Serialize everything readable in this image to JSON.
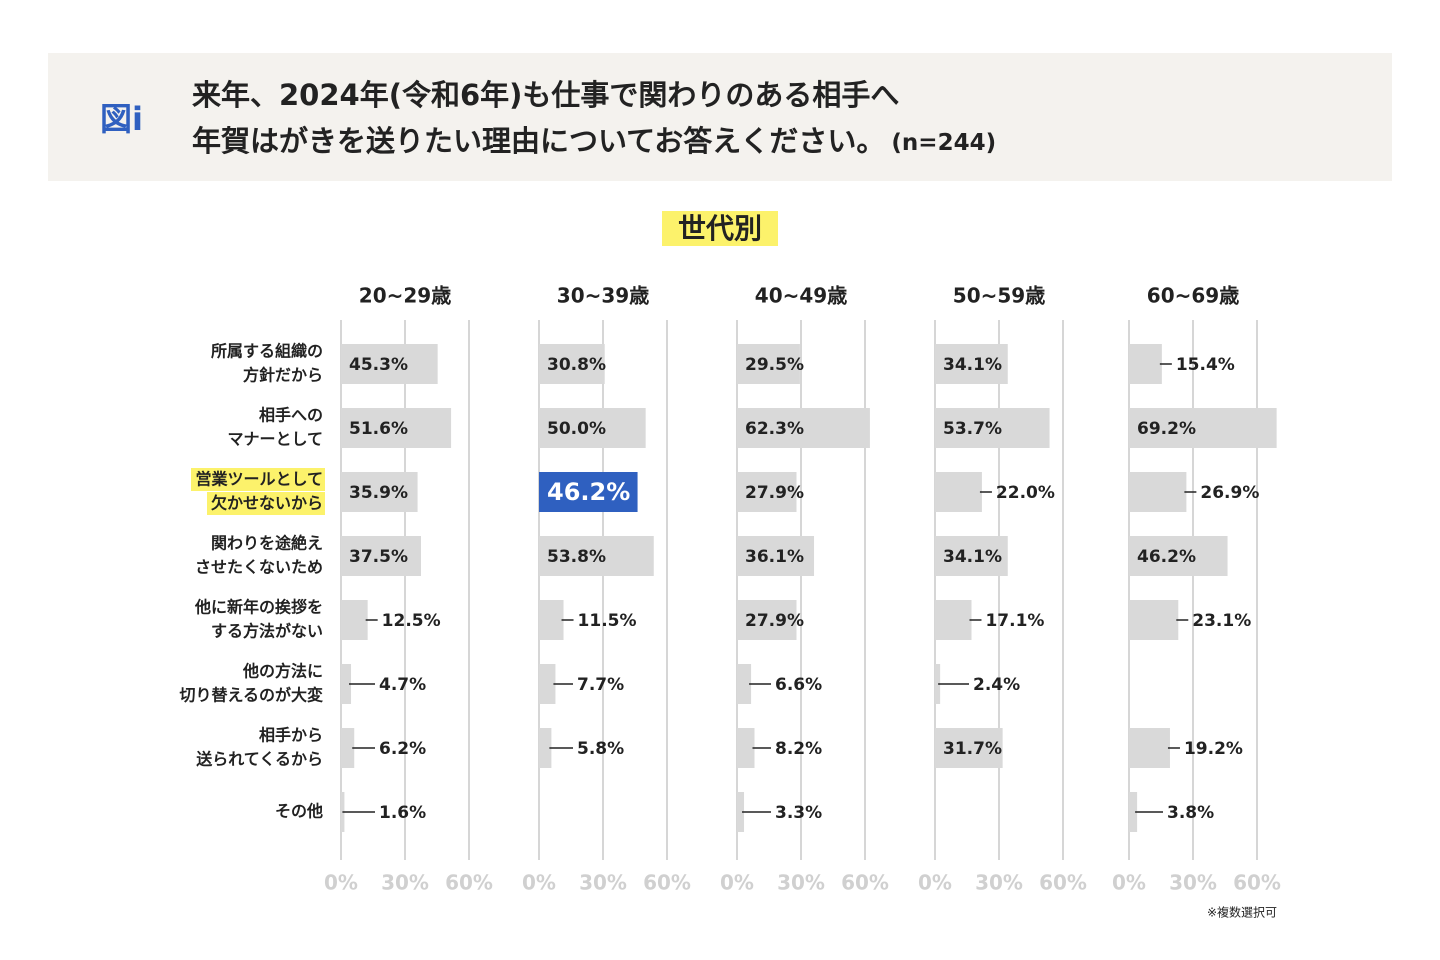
{
  "header": {
    "badge": "図i",
    "title_line1": "来年、2024年(令和6年)も仕事で関わりのある相手へ",
    "title_line2": "年賀はがきを送りたい理由についてお答えください。",
    "n": "(n=244)"
  },
  "subtitle": "世代別",
  "categories": [
    [
      "所属する組織の",
      "方針だから"
    ],
    [
      "相手への",
      "マナーとして"
    ],
    [
      "営業ツールとして",
      "欠かせないから"
    ],
    [
      "関わりを途絶え",
      "させたくないため"
    ],
    [
      "他に新年の挨拶を",
      "する方法がない"
    ],
    [
      "他の方法に",
      "切り替えるのが大変"
    ],
    [
      "相手から",
      "送られてくるから"
    ],
    [
      "その他"
    ]
  ],
  "highlight_category": 2,
  "highlight_category_color": "#fcf26b",
  "note": "※複数選択可",
  "chart_data": [
    {
      "type": "bar",
      "title": "20~29歳",
      "color": "#d9d9d9",
      "values": [
        45.3,
        51.6,
        35.9,
        37.5,
        12.5,
        4.7,
        6.2,
        1.6
      ],
      "value_labels": [
        "45.3%",
        "51.6%",
        "35.9%",
        "37.5%",
        "12.5%",
        "4.7%",
        "6.2%",
        "1.6%"
      ],
      "xlim": [
        0,
        60
      ],
      "xticks": [
        {
          "value": 0,
          "label": "0%"
        },
        {
          "value": 30,
          "label": "30%"
        },
        {
          "value": 60,
          "label": "60%"
        }
      ],
      "grid": true
    },
    {
      "type": "bar",
      "title": "30~39歳",
      "color": "#d9d9d9",
      "highlight_index": 2,
      "highlight_color": "#2f60c0",
      "values": [
        30.8,
        50.0,
        46.2,
        53.8,
        11.5,
        7.7,
        5.8,
        null
      ],
      "value_labels": [
        "30.8%",
        "50.0%",
        "46.2%",
        "53.8%",
        "11.5%",
        "7.7%",
        "5.8%",
        null
      ],
      "xlim": [
        0,
        60
      ],
      "xticks": [
        {
          "value": 0,
          "label": "0%"
        },
        {
          "value": 30,
          "label": "30%"
        },
        {
          "value": 60,
          "label": "60%"
        }
      ],
      "grid": true
    },
    {
      "type": "bar",
      "title": "40~49歳",
      "color": "#d9d9d9",
      "values": [
        29.5,
        62.3,
        27.9,
        36.1,
        27.9,
        6.6,
        8.2,
        3.3
      ],
      "value_labels": [
        "29.5%",
        "62.3%",
        "27.9%",
        "36.1%",
        "27.9%",
        "6.6%",
        "8.2%",
        "3.3%"
      ],
      "xlim": [
        0,
        60
      ],
      "xticks": [
        {
          "value": 0,
          "label": "0%"
        },
        {
          "value": 30,
          "label": "30%"
        },
        {
          "value": 60,
          "label": "60%"
        }
      ],
      "grid": true
    },
    {
      "type": "bar",
      "title": "50~59歳",
      "color": "#d9d9d9",
      "values": [
        34.1,
        53.7,
        22.0,
        34.1,
        17.1,
        2.4,
        31.7,
        null
      ],
      "value_labels": [
        "34.1%",
        "53.7%",
        "22.0%",
        "34.1%",
        "17.1%",
        "2.4%",
        "31.7%",
        null
      ],
      "xlim": [
        0,
        60
      ],
      "xticks": [
        {
          "value": 0,
          "label": "0%"
        },
        {
          "value": 30,
          "label": "30%"
        },
        {
          "value": 60,
          "label": "60%"
        }
      ],
      "grid": true
    },
    {
      "type": "bar",
      "title": "60~69歳",
      "color": "#d9d9d9",
      "values": [
        15.4,
        69.2,
        26.9,
        46.2,
        23.1,
        null,
        19.2,
        3.8
      ],
      "value_labels": [
        "15.4%",
        "69.2%",
        "26.9%",
        "46.2%",
        "23.1%",
        null,
        "19.2%",
        "3.8%"
      ],
      "xlim": [
        0,
        60
      ],
      "xticks": [
        {
          "value": 0,
          "label": "0%"
        },
        {
          "value": 30,
          "label": "30%"
        },
        {
          "value": 60,
          "label": "60%"
        }
      ],
      "grid": true
    }
  ]
}
